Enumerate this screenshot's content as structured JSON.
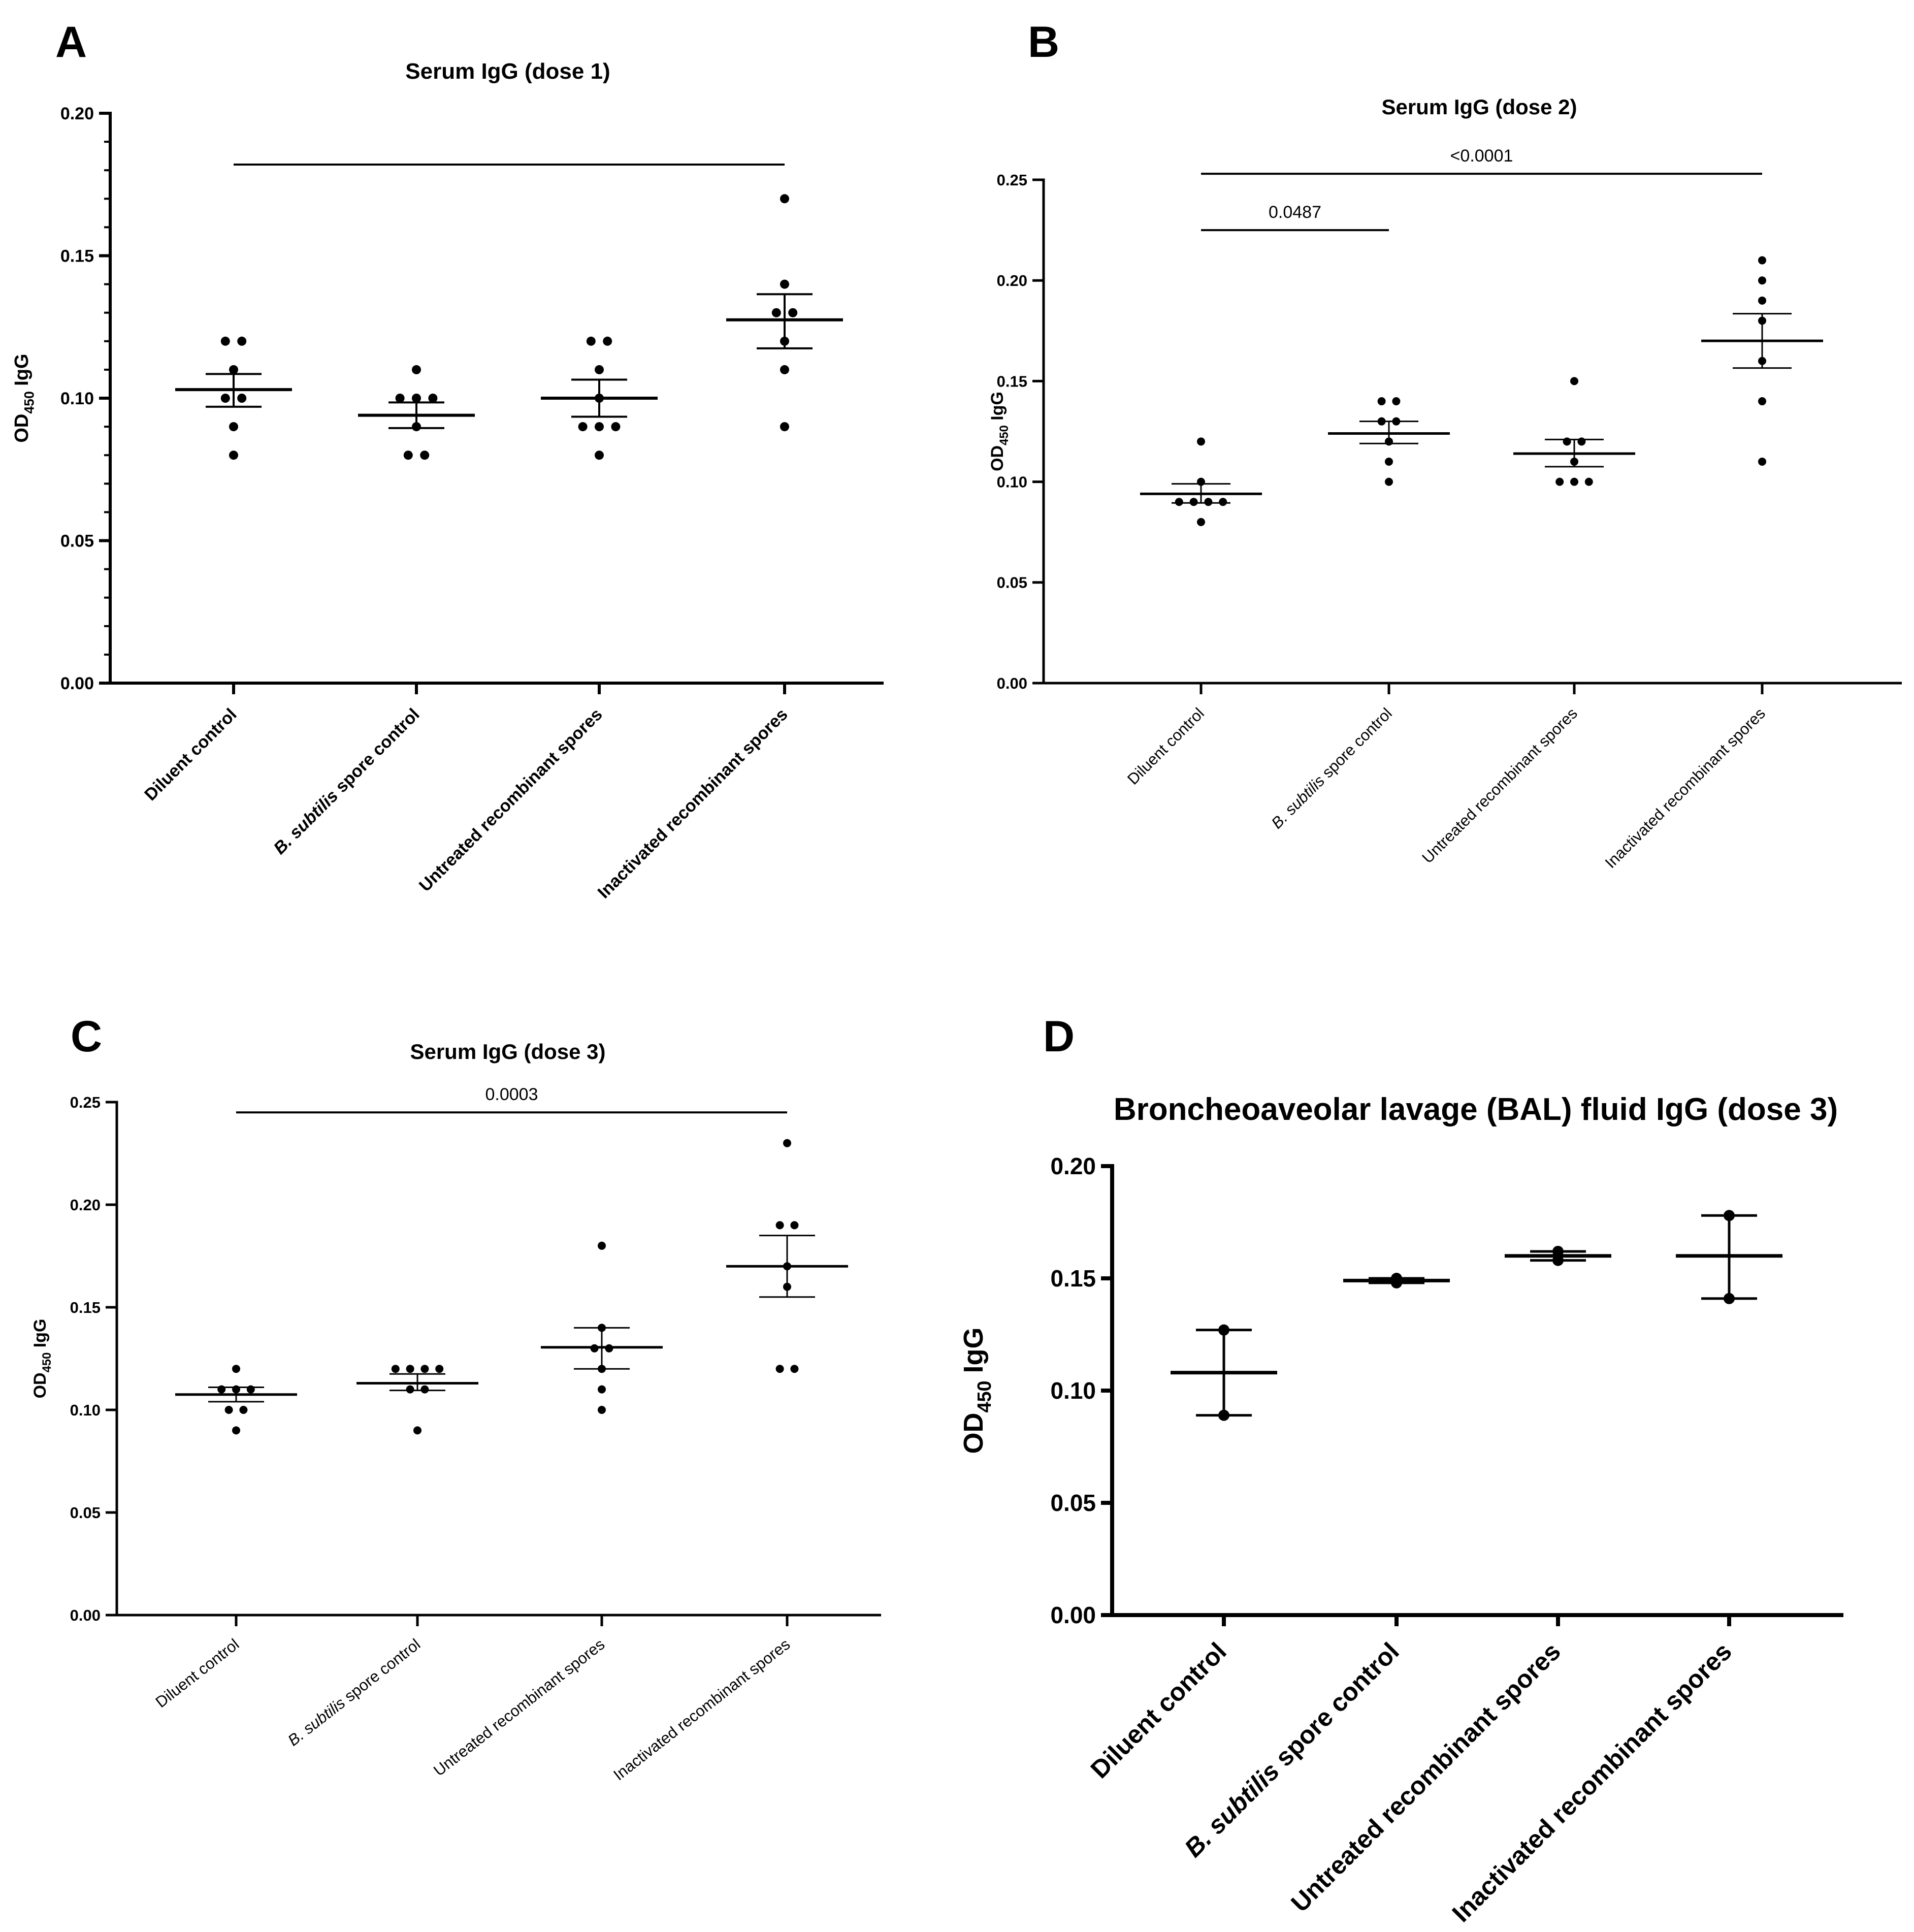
{
  "figure_note": "Four-panel dot plot of OD450 IgG (mean ± SEM)",
  "chart_data": [
    {
      "type": "scatter",
      "panel_label": "A",
      "title": "Serum IgG (dose 1)",
      "ylabel_main": "OD",
      "ylabel_sub": "450",
      "ylabel_tail": " IgG",
      "ylim": [
        0,
        0.2
      ],
      "yticks": [
        "0.00",
        "0.05",
        "0.10",
        "0.15",
        "0.20"
      ],
      "categories": [
        {
          "pre": "",
          "italic": "",
          "post": "Diluent control"
        },
        {
          "pre": "",
          "italic": "B. subtilis",
          "post": " spore control"
        },
        {
          "pre": "",
          "italic": "",
          "post": "Untreated recombinant spores"
        },
        {
          "pre": "",
          "italic": "",
          "post": "Inactivated recombinant spores"
        }
      ],
      "groups": [
        {
          "points": [
            0.12,
            0.12,
            0.11,
            0.1,
            0.1,
            0.09,
            0.08
          ],
          "mean": 0.103,
          "sem_low": 0.097,
          "sem_high": 0.1085
        },
        {
          "points": [
            0.11,
            0.1,
            0.1,
            0.1,
            0.09,
            0.08,
            0.08
          ],
          "mean": 0.094,
          "sem_low": 0.0895,
          "sem_high": 0.0985
        },
        {
          "points": [
            0.12,
            0.12,
            0.11,
            0.1,
            0.09,
            0.09,
            0.09,
            0.08
          ],
          "mean": 0.1,
          "sem_low": 0.0935,
          "sem_high": 0.1065
        },
        {
          "points": [
            0.17,
            0.14,
            0.13,
            0.13,
            0.12,
            0.11,
            0.09
          ],
          "mean": 0.1275,
          "sem_low": 0.1175,
          "sem_high": 0.1365
        }
      ],
      "comparisons": [
        {
          "from": 0,
          "to": 3,
          "y": 0.182,
          "label": ""
        }
      ]
    },
    {
      "type": "scatter",
      "panel_label": "B",
      "title": "Serum IgG (dose 2)",
      "ylabel_main": "OD",
      "ylabel_sub": "450",
      "ylabel_tail": " IgG",
      "ylim": [
        0,
        0.25
      ],
      "yticks": [
        "0.00",
        "0.05",
        "0.10",
        "0.15",
        "0.20",
        "0.25"
      ],
      "categories": [
        {
          "pre": "",
          "italic": "",
          "post": "Diluent control"
        },
        {
          "pre": "",
          "italic": "B. subtilis",
          "post": " spore control"
        },
        {
          "pre": "",
          "italic": "",
          "post": "Untreated recombinant spores"
        },
        {
          "pre": "",
          "italic": "",
          "post": "Inactivated recombinant spores"
        }
      ],
      "groups": [
        {
          "points": [
            0.12,
            0.1,
            0.09,
            0.09,
            0.09,
            0.09,
            0.08
          ],
          "mean": 0.094,
          "sem_low": 0.0895,
          "sem_high": 0.099
        },
        {
          "points": [
            0.14,
            0.14,
            0.13,
            0.13,
            0.12,
            0.11,
            0.1
          ],
          "mean": 0.124,
          "sem_low": 0.119,
          "sem_high": 0.13
        },
        {
          "points": [
            0.15,
            0.12,
            0.12,
            0.11,
            0.1,
            0.1,
            0.1
          ],
          "mean": 0.114,
          "sem_low": 0.1075,
          "sem_high": 0.121
        },
        {
          "points": [
            0.21,
            0.2,
            0.19,
            0.18,
            0.16,
            0.14,
            0.11
          ],
          "mean": 0.17,
          "sem_low": 0.1565,
          "sem_high": 0.1835
        }
      ],
      "comparisons": [
        {
          "from": 0,
          "to": 1,
          "y": 0.225,
          "label": "0.0487"
        },
        {
          "from": 0,
          "to": 3,
          "y": 0.253,
          "label": "<0.0001"
        }
      ]
    },
    {
      "type": "scatter",
      "panel_label": "C",
      "title": "Serum IgG (dose 3)",
      "ylabel_main": "OD",
      "ylabel_sub": "450",
      "ylabel_tail": " IgG",
      "ylim": [
        0,
        0.25
      ],
      "yticks": [
        "0.00",
        "0.05",
        "0.10",
        "0.15",
        "0.20",
        "0.25"
      ],
      "categories": [
        {
          "pre": "",
          "italic": "",
          "post": "Diluent control"
        },
        {
          "pre": "",
          "italic": "B. subtilis",
          "post": " spore control"
        },
        {
          "pre": "",
          "italic": "",
          "post": "Untreated recombinant spores"
        },
        {
          "pre": "",
          "italic": "",
          "post": "Inactivated recombinant spores"
        }
      ],
      "groups": [
        {
          "points": [
            0.12,
            0.11,
            0.11,
            0.11,
            0.1,
            0.1,
            0.09
          ],
          "mean": 0.1075,
          "sem_low": 0.104,
          "sem_high": 0.111
        },
        {
          "points": [
            0.12,
            0.12,
            0.12,
            0.12,
            0.11,
            0.11,
            0.09
          ],
          "mean": 0.113,
          "sem_low": 0.1095,
          "sem_high": 0.1175
        },
        {
          "points": [
            0.18,
            0.14,
            0.13,
            0.13,
            0.12,
            0.11,
            0.1
          ],
          "mean": 0.1305,
          "sem_low": 0.12,
          "sem_high": 0.14
        },
        {
          "points": [
            0.23,
            0.19,
            0.19,
            0.17,
            0.16,
            0.12,
            0.12
          ],
          "mean": 0.17,
          "sem_low": 0.155,
          "sem_high": 0.185
        }
      ],
      "comparisons": [
        {
          "from": 0,
          "to": 3,
          "y": 0.245,
          "label": "0.0003"
        }
      ]
    },
    {
      "type": "scatter",
      "panel_label": "D",
      "title": "Broncheoaveolar lavage (BAL) fluid IgG (dose 3)",
      "ylabel_main": "OD",
      "ylabel_sub": "450",
      "ylabel_tail": " IgG",
      "ylim": [
        0,
        0.2
      ],
      "yticks": [
        "0.00",
        "0.05",
        "0.10",
        "0.15",
        "0.20"
      ],
      "categories": [
        {
          "pre": "",
          "italic": "",
          "post": "Diluent control"
        },
        {
          "pre": "",
          "italic": "B. subtilis",
          "post": " spore control"
        },
        {
          "pre": "",
          "italic": "",
          "post": "Untreated recombinant spores"
        },
        {
          "pre": "",
          "italic": "",
          "post": "Inactivated recombinant spores"
        }
      ],
      "groups": [
        {
          "points": [
            0.127,
            0.089
          ],
          "mean": 0.108,
          "sem_low": 0.089,
          "sem_high": 0.127
        },
        {
          "points": [
            0.15,
            0.148
          ],
          "mean": 0.149,
          "sem_low": 0.148,
          "sem_high": 0.15
        },
        {
          "points": [
            0.162,
            0.158
          ],
          "mean": 0.16,
          "sem_low": 0.158,
          "sem_high": 0.162
        },
        {
          "points": [
            0.178,
            0.141
          ],
          "mean": 0.16,
          "sem_low": 0.141,
          "sem_high": 0.178
        }
      ],
      "comparisons": []
    }
  ]
}
